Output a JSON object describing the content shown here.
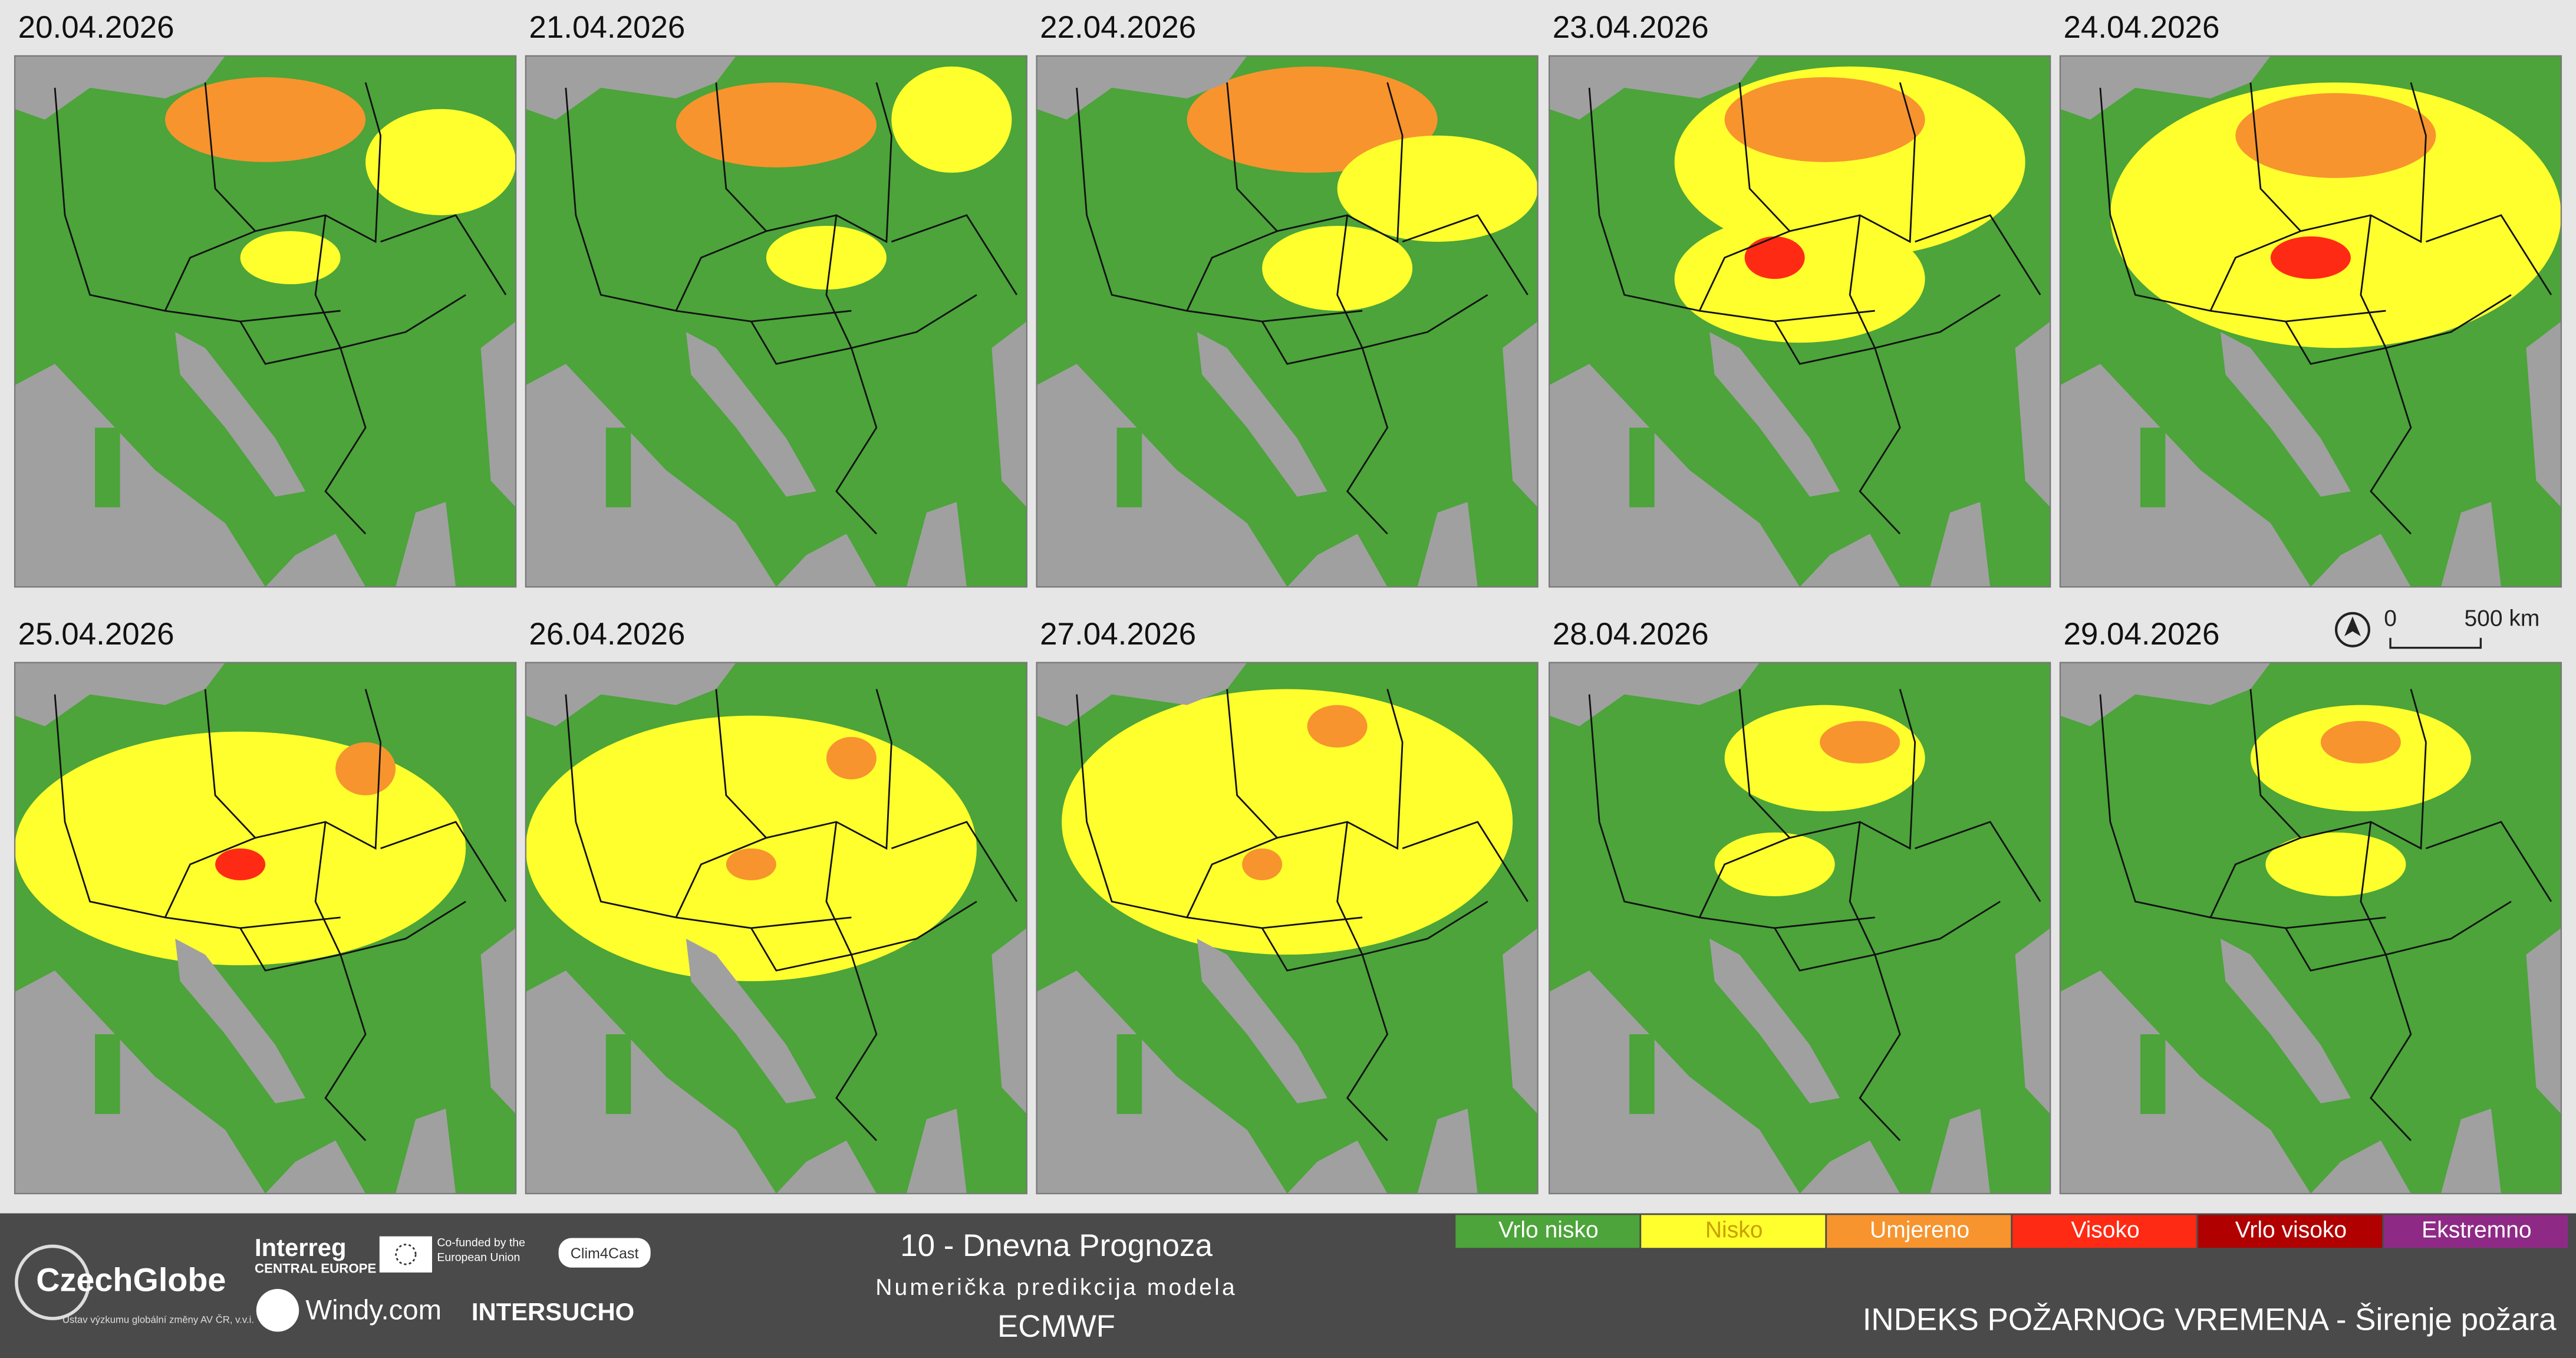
{
  "panels": [
    {
      "date": "20.04.2026"
    },
    {
      "date": "21.04.2026"
    },
    {
      "date": "22.04.2026"
    },
    {
      "date": "23.04.2026"
    },
    {
      "date": "24.04.2026"
    },
    {
      "date": "25.04.2026"
    },
    {
      "date": "26.04.2026"
    },
    {
      "date": "27.04.2026"
    },
    {
      "date": "28.04.2026"
    },
    {
      "date": "29.04.2026"
    }
  ],
  "scale_bar": {
    "start": "0",
    "end": "500 km"
  },
  "footer": {
    "czechglobe": "CzechGlobe",
    "czechglobe_sub": "Ústav výzkumu globální změny AV ČR, v.v.i.",
    "interreg": "Interreg",
    "interreg_sub": "CENTRAL EUROPE",
    "eu": "Co-funded by the European Union",
    "clim4cast": "Clim4Cast",
    "windy": "Windy.com",
    "intersucho": "INTERSUCHO",
    "forecast": "10 - Dnevna Prognoza",
    "model_line": "Numerička predikcija modela",
    "model": "ECMWF"
  },
  "legend": [
    {
      "label": "Vrlo nisko",
      "color": "#4ca43a"
    },
    {
      "label": "Nisko",
      "color": "#ffff2e"
    },
    {
      "label": "Umjereno",
      "color": "#f7942e"
    },
    {
      "label": "Visoko",
      "color": "#ff2a14"
    },
    {
      "label": "Vrlo visoko",
      "color": "#b00000"
    },
    {
      "label": "Ekstremno",
      "color": "#8e2a86"
    }
  ],
  "title": "INDEKS POŽARNOG VREMENA - Širenje požara"
}
